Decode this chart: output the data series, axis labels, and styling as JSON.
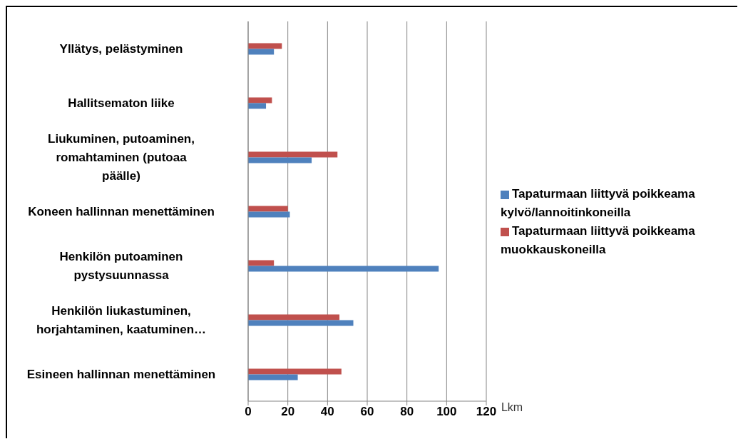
{
  "chart_data": {
    "type": "bar",
    "orientation": "horizontal",
    "categories": [
      "Yllätys, pelästyminen",
      "Hallitsematon liike",
      "Liukuminen, putoaminen, romahtaminen (putoaa päälle)",
      "Koneen hallinnan menettäminen",
      "Henkilön putoaminen pystysuunnassa",
      "Henkilön liukastuminen, horjahtaminen, kaatuminen…",
      "Esineen hallinnan menettäminen"
    ],
    "series": [
      {
        "name": "Tapaturmaan liittyvä poikkeama muokkauskoneilla",
        "color": "#c0504d",
        "values": [
          17,
          12,
          45,
          20,
          13,
          46,
          47
        ]
      },
      {
        "name": "Tapaturmaan liittyvä poikkeama kylvö/lannoitinkoneilla",
        "color": "#4f81bd",
        "values": [
          13,
          9,
          32,
          21,
          96,
          53,
          25
        ]
      }
    ],
    "xlabel": "Lkm",
    "xlim": [
      0,
      120
    ],
    "xticks": [
      0,
      20,
      40,
      60,
      80,
      100,
      120
    ],
    "grid": "x",
    "legend": "right"
  }
}
